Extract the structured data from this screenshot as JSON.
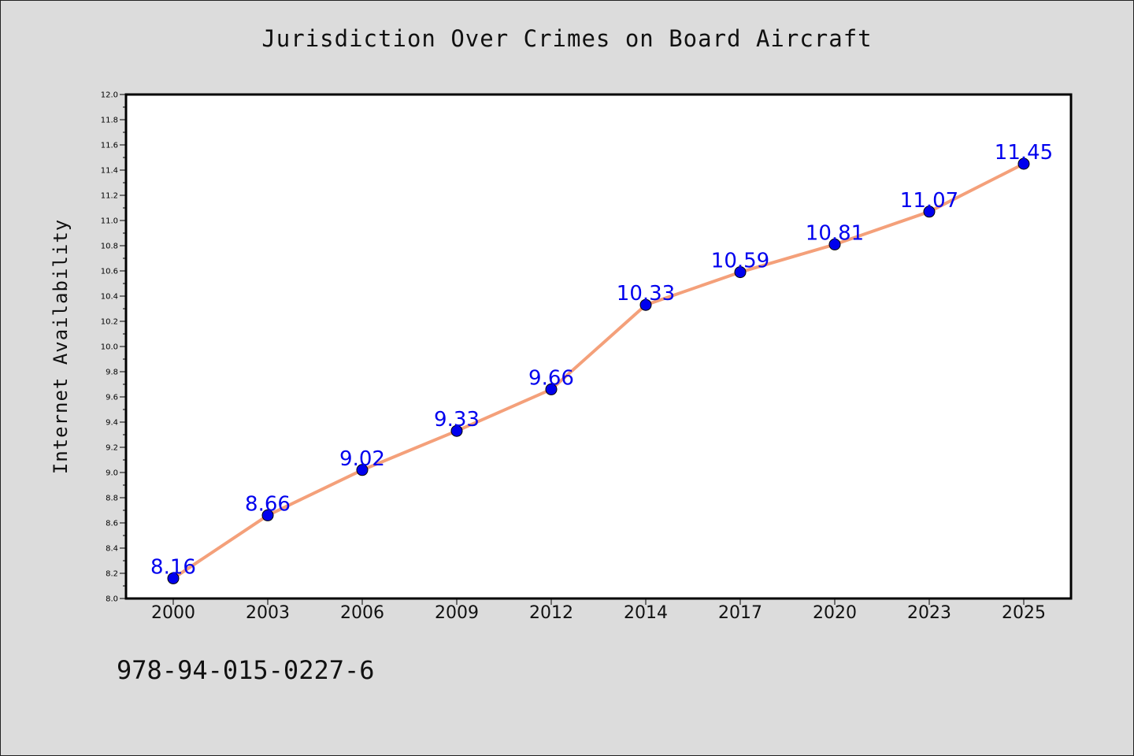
{
  "chart_data": {
    "type": "line",
    "title": "Jurisdiction Over Crimes on Board Aircraft",
    "xlabel": "",
    "ylabel": "Internet Availability",
    "categories": [
      "2000",
      "2003",
      "2006",
      "2009",
      "2012",
      "2014",
      "2017",
      "2020",
      "2023",
      "2025"
    ],
    "values": [
      8.16,
      8.66,
      9.02,
      9.33,
      9.66,
      10.33,
      10.59,
      10.81,
      11.07,
      11.45
    ],
    "data_labels": [
      "8.16",
      "8.66",
      "9.02",
      "9.33",
      "9.66",
      "10.33",
      "10.59",
      "10.81",
      "11.07",
      "11.45"
    ],
    "ylim": [
      8.0,
      12.0
    ],
    "yticks": [
      "8.0",
      "8.2",
      "8.4",
      "8.6",
      "8.8",
      "9.0",
      "9.2",
      "9.4",
      "9.6",
      "9.8",
      "10.0",
      "10.2",
      "10.4",
      "10.6",
      "10.8",
      "11.0",
      "11.2",
      "11.4",
      "11.6",
      "11.8",
      "12.0"
    ],
    "grid": false,
    "line_color": "#f4a07a",
    "marker_color": "#0000ee",
    "label_color": "#0000ee"
  },
  "footer": {
    "isbn": "978-94-015-0227-6"
  }
}
